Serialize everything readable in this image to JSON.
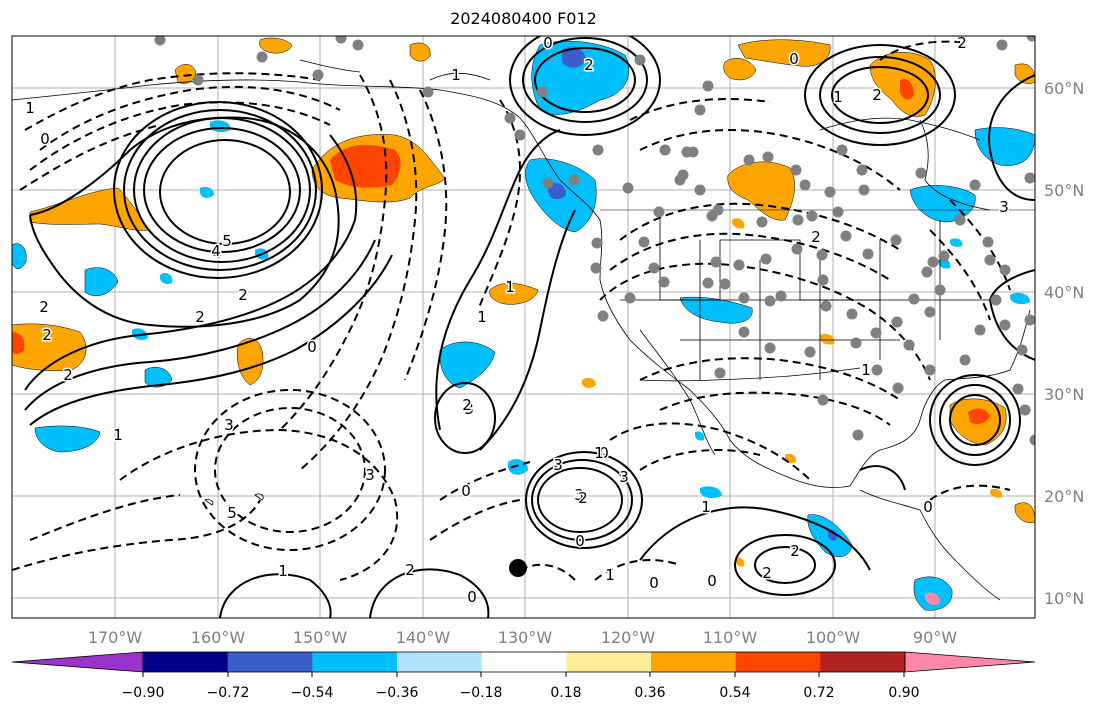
{
  "title": "2024080400 F012",
  "map": {
    "lon_labels": [
      "170°W",
      "160°W",
      "150°W",
      "140°W",
      "130°W",
      "120°W",
      "110°W",
      "100°W",
      "90°W"
    ],
    "lat_labels": [
      "60°N",
      "50°N",
      "40°N",
      "30°N",
      "20°N",
      "10°N"
    ],
    "contour_labels": [
      "4",
      "5",
      "2",
      "2",
      "2",
      "1",
      "0",
      "0",
      "0",
      "0",
      "1",
      "2",
      "3",
      "5",
      "4",
      "3",
      "3",
      "2",
      "2",
      "2",
      "1",
      "1",
      "0",
      "0",
      "0",
      "0",
      "1",
      "1",
      "1",
      "1",
      "2",
      "2",
      "3",
      "3",
      "3",
      "2",
      "2",
      "0",
      "1",
      "2",
      "3",
      "2",
      "2",
      "0",
      "1",
      "1",
      "0"
    ],
    "colors": {
      "contour": "#000000",
      "station": "#808080",
      "coast": "#000000",
      "grid": "#b0b0b0",
      "axis_label": "#808080"
    }
  },
  "colorbar": {
    "ticks": [
      "−0.90",
      "−0.72",
      "−0.54",
      "−0.36",
      "−0.18",
      "0.18",
      "0.36",
      "0.54",
      "0.72",
      "0.90"
    ],
    "colors": [
      "#9933cc",
      "#00008b",
      "#3a5fcd",
      "#00bfff",
      "#b0e2ff",
      "#ffffff",
      "#ffee99",
      "#ffa500",
      "#ff4500",
      "#b22222",
      "#ff88aa"
    ]
  }
}
